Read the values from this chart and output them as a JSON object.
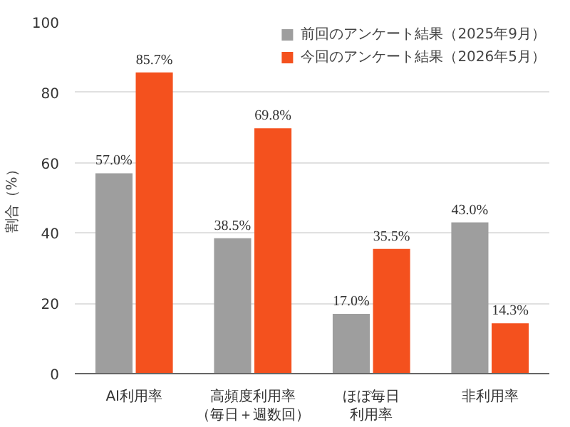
{
  "chart_data": {
    "type": "bar",
    "ylabel": "割合（%）",
    "categories": [
      "AI利用率",
      "高頻度利用率（毎日＋週数回）",
      "ほぼ毎日利用率",
      "非利用率"
    ],
    "series": [
      {
        "name": "前回のアンケート結果（2025年9月）",
        "color": "#9e9e9e",
        "values": [
          57.0,
          38.5,
          17.0,
          43.0
        ],
        "value_labels": [
          "57.0%",
          "38.5%",
          "17.0%",
          "43.0%"
        ]
      },
      {
        "name": "今回のアンケート結果（2026年5月）",
        "color": "#f4511e",
        "values": [
          85.7,
          69.8,
          35.5,
          14.3
        ],
        "value_labels": [
          "85.7%",
          "69.8%",
          "35.5%",
          "14.3%"
        ]
      }
    ],
    "ylim": [
      0,
      100
    ],
    "yticks": [
      0,
      20,
      40,
      60,
      80,
      100
    ],
    "grid": "y",
    "legend": "top right"
  }
}
